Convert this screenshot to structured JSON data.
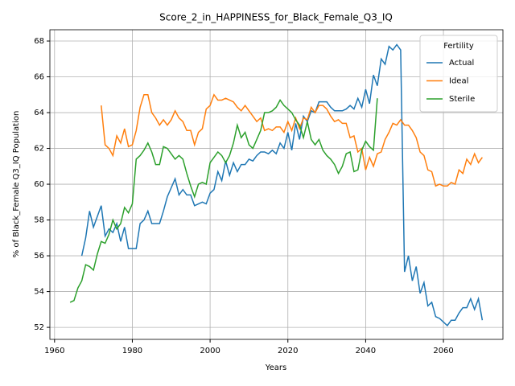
{
  "chart_data": {
    "type": "line",
    "title": "Score_2_in_HAPPINESS_for_Black_Female_Q3_IQ",
    "x_label": "Years",
    "y_label": "% of Black_Female Q3_IQ Population",
    "legend_title": "Fertility",
    "legend": "upper right",
    "grid": true,
    "xlim": [
      1958.8,
      2075.3
    ],
    "ylim": [
      51.33,
      68.63
    ],
    "xticks": [
      1960,
      1980,
      2000,
      2020,
      2040,
      2060
    ],
    "yticks": [
      52,
      54,
      56,
      58,
      60,
      62,
      64,
      66,
      68
    ],
    "x": [
      1964,
      1965,
      1966,
      1967,
      1968,
      1969,
      1970,
      1971,
      1972,
      1973,
      1974,
      1975,
      1976,
      1977,
      1978,
      1979,
      1980,
      1981,
      1982,
      1983,
      1984,
      1985,
      1986,
      1987,
      1988,
      1989,
      1990,
      1991,
      1992,
      1993,
      1994,
      1995,
      1996,
      1997,
      1998,
      1999,
      2000,
      2001,
      2002,
      2003,
      2004,
      2005,
      2006,
      2007,
      2008,
      2009,
      2010,
      2011,
      2012,
      2013,
      2014,
      2015,
      2016,
      2017,
      2018,
      2019,
      2020,
      2021,
      2022,
      2023,
      2024,
      2025,
      2026,
      2027,
      2028,
      2029,
      2030,
      2031,
      2032,
      2033,
      2034,
      2035,
      2036,
      2037,
      2038,
      2039,
      2040,
      2041,
      2042,
      2043,
      2044,
      2045,
      2046,
      2047,
      2048,
      2049,
      2050,
      2051,
      2052,
      2053,
      2054,
      2055,
      2056,
      2057,
      2058,
      2059,
      2060,
      2061,
      2062,
      2063,
      2064,
      2065,
      2066,
      2067,
      2068,
      2069,
      2070
    ],
    "series": [
      {
        "name": "Actual",
        "color": "#1f77b4",
        "values": [
          null,
          null,
          null,
          56.0,
          57.0,
          58.5,
          57.6,
          58.2,
          58.8,
          57.1,
          57.5,
          57.3,
          57.8,
          56.8,
          57.6,
          56.4,
          56.4,
          56.4,
          57.8,
          58.0,
          58.5,
          57.8,
          57.8,
          57.8,
          58.5,
          59.3,
          59.8,
          60.3,
          59.4,
          59.7,
          59.4,
          59.4,
          58.8,
          58.9,
          59.0,
          58.9,
          59.5,
          59.7,
          60.7,
          60.2,
          61.3,
          60.5,
          61.2,
          60.7,
          61.1,
          61.1,
          61.4,
          61.3,
          61.6,
          61.8,
          61.8,
          61.7,
          61.9,
          61.7,
          62.3,
          62.0,
          62.9,
          61.9,
          63.4,
          62.5,
          63.8,
          63.5,
          64.1,
          64.0,
          64.6,
          64.6,
          64.6,
          64.3,
          64.1,
          64.1,
          64.1,
          64.2,
          64.4,
          64.2,
          64.8,
          64.3,
          65.3,
          64.5,
          66.1,
          65.5,
          67.0,
          66.7,
          67.7,
          67.5,
          67.8,
          67.5,
          55.1,
          56.0,
          54.6,
          55.4,
          53.9,
          54.5,
          53.2,
          53.4,
          52.6,
          52.5,
          52.3,
          52.1,
          52.4,
          52.4,
          52.8,
          53.1,
          53.1,
          53.6,
          53.0,
          53.6,
          52.4
        ]
      },
      {
        "name": "Ideal",
        "color": "#ff7f0e",
        "values": [
          null,
          null,
          null,
          null,
          null,
          null,
          null,
          null,
          64.4,
          62.2,
          62.0,
          61.6,
          62.7,
          62.3,
          63.1,
          62.1,
          62.2,
          63.0,
          64.3,
          65.0,
          65.0,
          64.0,
          63.7,
          63.3,
          63.6,
          63.3,
          63.6,
          64.1,
          63.7,
          63.5,
          63.0,
          63.0,
          62.2,
          62.9,
          63.1,
          64.2,
          64.4,
          65.0,
          64.7,
          64.7,
          64.8,
          64.7,
          64.6,
          64.3,
          64.1,
          64.4,
          64.1,
          63.8,
          63.5,
          63.7,
          63.0,
          63.1,
          63.0,
          63.2,
          63.2,
          62.9,
          63.5,
          63.0,
          63.7,
          63.1,
          63.7,
          63.6,
          64.3,
          64.0,
          64.4,
          64.4,
          64.2,
          63.8,
          63.5,
          63.6,
          63.4,
          63.4,
          62.6,
          62.7,
          61.8,
          62.0,
          60.8,
          61.5,
          61.0,
          61.7,
          61.8,
          62.5,
          62.9,
          63.4,
          63.3,
          63.6,
          63.3,
          63.3,
          63.0,
          62.6,
          61.8,
          61.6,
          60.8,
          60.7,
          59.9,
          60.0,
          59.9,
          59.9,
          60.1,
          60.0,
          60.8,
          60.6,
          61.4,
          61.1,
          61.7,
          61.2,
          61.5
        ]
      },
      {
        "name": "Sterile",
        "color": "#2ca02c",
        "values": [
          53.4,
          53.5,
          54.2,
          54.6,
          55.5,
          55.4,
          55.2,
          56.1,
          56.8,
          56.7,
          57.2,
          58.0,
          57.5,
          57.8,
          58.7,
          58.4,
          58.9,
          61.4,
          61.6,
          61.9,
          62.3,
          61.8,
          61.1,
          61.1,
          62.1,
          62.0,
          61.7,
          61.4,
          61.6,
          61.4,
          60.6,
          59.9,
          59.3,
          60.0,
          60.1,
          60.0,
          61.2,
          61.5,
          61.8,
          61.6,
          61.2,
          61.6,
          62.3,
          63.3,
          62.6,
          62.9,
          62.2,
          62.0,
          62.5,
          63.0,
          64.0,
          64.0,
          64.1,
          64.3,
          64.7,
          64.4,
          64.2,
          64.0,
          63.6,
          63.3,
          62.6,
          63.5,
          62.5,
          62.2,
          62.5,
          61.9,
          61.6,
          61.4,
          61.1,
          60.6,
          61.0,
          61.7,
          61.8,
          60.7,
          60.8,
          61.9,
          62.4,
          62.1,
          61.9,
          64.8,
          null,
          null,
          null,
          null,
          null,
          null,
          null,
          null,
          null,
          null,
          null,
          null,
          null,
          null,
          null,
          null,
          null,
          null,
          null,
          null,
          null,
          null,
          null,
          null,
          null,
          null,
          null
        ]
      }
    ]
  }
}
